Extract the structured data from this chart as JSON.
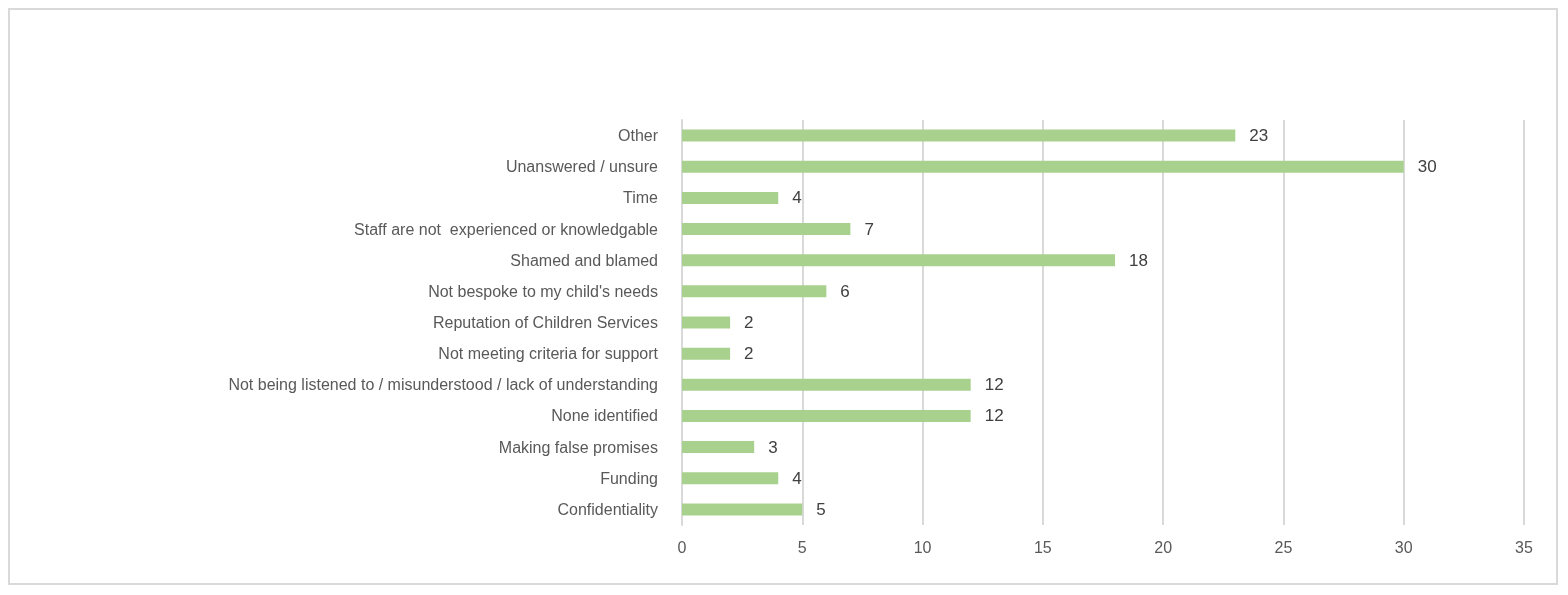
{
  "chart_data": {
    "type": "bar",
    "orientation": "horizontal",
    "categories": [
      "Other",
      "Unanswered / unsure",
      "Time",
      "Staff are not  experienced or knowledgable",
      "Shamed and blamed",
      "Not bespoke to my child's needs",
      "Reputation of Children Services",
      "Not meeting criteria for support",
      "Not being listened to / misunderstood / lack of understanding",
      "None identified",
      "Making false promises",
      "Funding",
      "Confidentiality"
    ],
    "values": [
      23,
      30,
      4,
      7,
      18,
      6,
      2,
      2,
      12,
      12,
      3,
      4,
      5
    ],
    "color": "#a9d18e",
    "xlim": [
      0,
      35
    ],
    "xticks": [
      0,
      5,
      10,
      15,
      20,
      25,
      30,
      35
    ],
    "grid": "x",
    "data_labels": true
  }
}
